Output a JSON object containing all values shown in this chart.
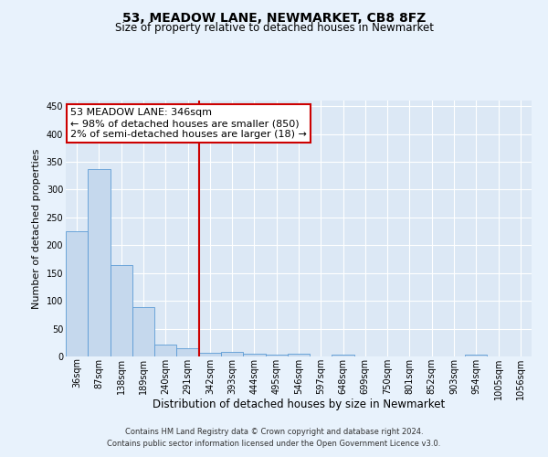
{
  "title": "53, MEADOW LANE, NEWMARKET, CB8 8FZ",
  "subtitle": "Size of property relative to detached houses in Newmarket",
  "xlabel": "Distribution of detached houses by size in Newmarket",
  "ylabel": "Number of detached properties",
  "property_label": "53 MEADOW LANE: 346sqm",
  "annotation_line1": "← 98% of detached houses are smaller (850)",
  "annotation_line2": "2% of semi-detached houses are larger (18) →",
  "bar_categories": [
    "36sqm",
    "87sqm",
    "138sqm",
    "189sqm",
    "240sqm",
    "291sqm",
    "342sqm",
    "393sqm",
    "444sqm",
    "495sqm",
    "546sqm",
    "597sqm",
    "648sqm",
    "699sqm",
    "750sqm",
    "801sqm",
    "852sqm",
    "903sqm",
    "954sqm",
    "1005sqm",
    "1056sqm"
  ],
  "bar_values": [
    225,
    337,
    165,
    88,
    22,
    15,
    7,
    8,
    5,
    3,
    5,
    0,
    4,
    0,
    0,
    0,
    0,
    0,
    3,
    0,
    0
  ],
  "bar_color": "#c5d8ed",
  "bar_edge_color": "#5b9bd5",
  "vline_x_index": 6,
  "vline_color": "#cc0000",
  "ylim": [
    0,
    460
  ],
  "yticks": [
    0,
    50,
    100,
    150,
    200,
    250,
    300,
    350,
    400,
    450
  ],
  "background_color": "#dce8f5",
  "plot_bg_color": "#dce8f5",
  "fig_bg_color": "#e8f2fc",
  "grid_color": "#ffffff",
  "annotation_box_facecolor": "#ffffff",
  "annotation_box_edgecolor": "#cc0000",
  "footer_line1": "Contains HM Land Registry data © Crown copyright and database right 2024.",
  "footer_line2": "Contains public sector information licensed under the Open Government Licence v3.0.",
  "title_fontsize": 10,
  "subtitle_fontsize": 8.5,
  "ylabel_fontsize": 8,
  "xlabel_fontsize": 8.5,
  "tick_fontsize": 7,
  "annotation_fontsize": 8,
  "footer_fontsize": 6
}
